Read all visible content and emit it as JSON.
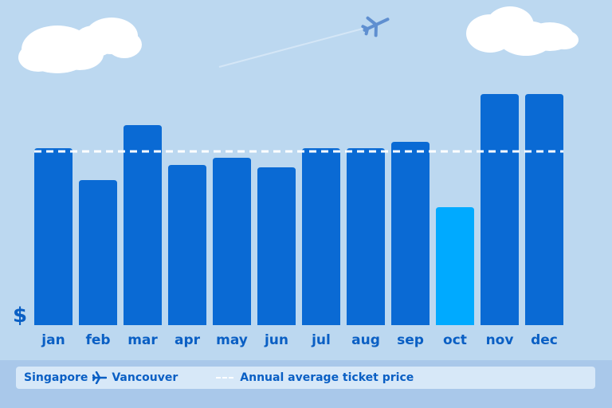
{
  "chart_data": {
    "type": "bar",
    "categories": [
      "jan",
      "feb",
      "mar",
      "apr",
      "may",
      "jun",
      "jul",
      "aug",
      "sep",
      "oct",
      "nov",
      "dec"
    ],
    "values": [
      222,
      182,
      251,
      201,
      210,
      198,
      222,
      222,
      230,
      148,
      290,
      290
    ],
    "highlight_index": 9,
    "average": 218,
    "ylim": [
      0,
      300
    ],
    "ylabel": "$",
    "grid": false,
    "legend_position": "bottom",
    "colors": {
      "bar": "#0a6ad4",
      "highlight": "#00aaff",
      "average_line": "#ffffff",
      "label": "#0a5fc4"
    }
  },
  "legend": {
    "origin": "Singapore",
    "destination": "Vancouver",
    "plane_icon": "airplane-icon",
    "average_label": "Annual average ticket price"
  }
}
